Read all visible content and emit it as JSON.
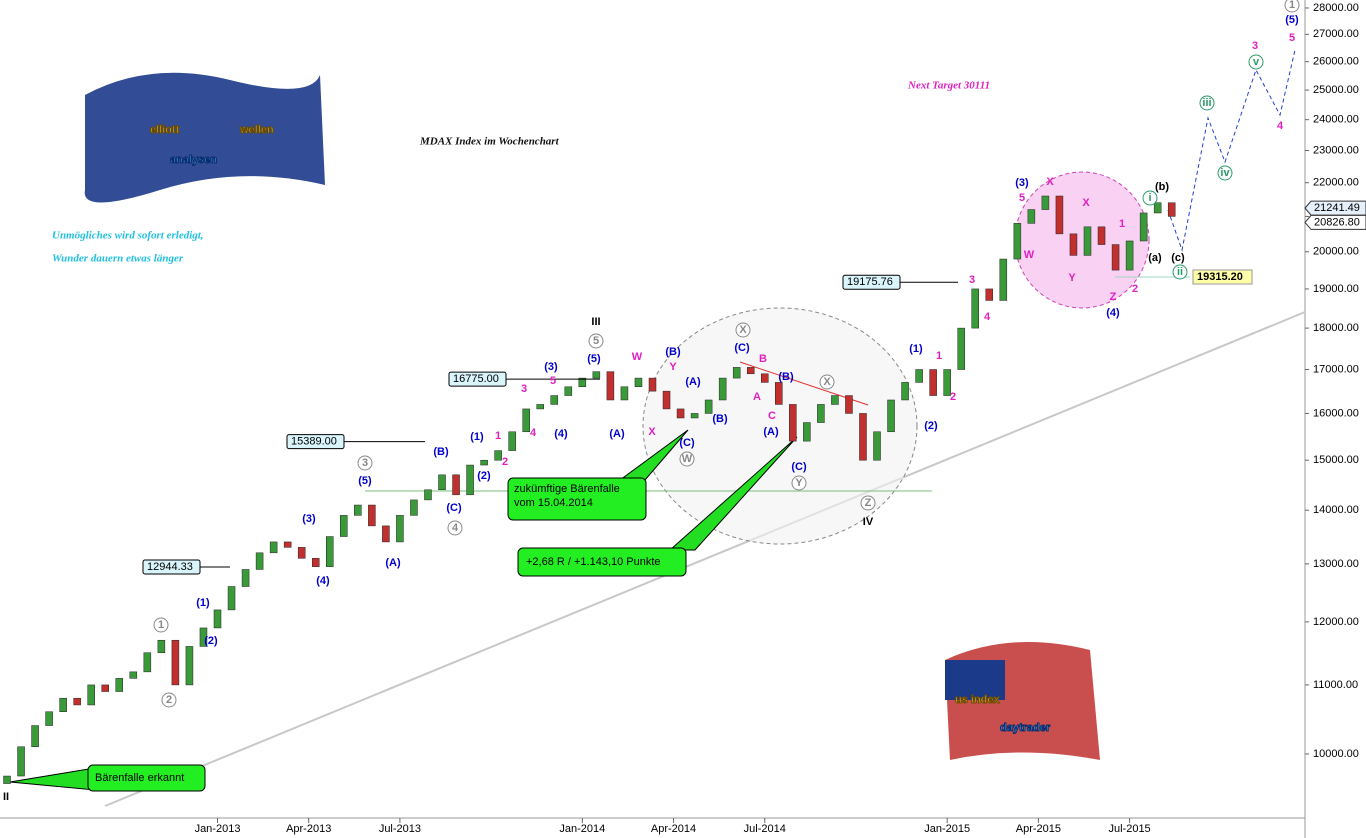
{
  "chart_data": {
    "type": "candlestick",
    "title": "MDAX Index im Wochenchart",
    "subtitle": "Next Target 30111",
    "slogan": [
      "Unmögliches wird sofort erledigt,",
      "Wunder dauern etwas länger"
    ],
    "logos": [
      [
        "elliott",
        "wellen",
        "analysen"
      ],
      [
        "us index",
        "daytrader"
      ]
    ],
    "x": [
      0,
      2,
      4,
      6,
      8,
      10,
      12,
      14,
      16,
      18,
      20,
      22,
      24,
      26,
      28,
      30,
      32,
      34,
      36,
      38,
      40,
      42,
      44,
      46,
      48,
      50,
      52,
      54,
      56,
      58,
      60,
      62,
      64,
      66,
      68,
      70,
      72,
      74,
      76,
      78,
      80,
      82,
      84,
      86,
      88,
      90,
      92,
      94,
      96,
      98,
      100,
      102,
      104,
      106,
      108,
      110,
      112,
      114,
      116,
      118,
      120,
      122,
      124,
      126,
      128,
      130,
      132,
      134,
      136,
      138,
      140,
      142,
      144,
      146,
      148,
      150,
      152,
      154,
      156,
      158,
      160,
      162,
      164,
      166
    ],
    "open": [
      9600,
      9700,
      10100,
      10400,
      10600,
      10800,
      10700,
      11000,
      10900,
      11100,
      11200,
      11500,
      11700,
      11000,
      11600,
      11900,
      12200,
      12600,
      12900,
      13200,
      13400,
      13300,
      13100,
      12950,
      13500,
      13900,
      14100,
      13700,
      13400,
      13900,
      14200,
      14400,
      14700,
      14300,
      14900,
      15000,
      15200,
      15600,
      16100,
      16200,
      16400,
      16600,
      16800,
      16950,
      16300,
      16600,
      16800,
      16500,
      16100,
      15900,
      16000,
      16300,
      16800,
      17050,
      16900,
      16700,
      16200,
      15400,
      15800,
      16200,
      16400,
      16000,
      15000,
      15600,
      16300,
      16700,
      17000,
      16400,
      17000,
      18000,
      19000,
      18700,
      19800,
      20800,
      21200,
      21600,
      20500,
      19900,
      20700,
      20200,
      19500,
      20300,
      21100,
      21400
    ],
    "close": [
      9700,
      10100,
      10400,
      10600,
      10800,
      10700,
      11000,
      10900,
      11100,
      11200,
      11500,
      11700,
      11000,
      11600,
      11900,
      12200,
      12600,
      12900,
      13200,
      13400,
      13300,
      13100,
      12950,
      13500,
      13900,
      14100,
      13700,
      13400,
      13900,
      14200,
      14400,
      14700,
      14300,
      14900,
      15000,
      15200,
      15600,
      16100,
      16200,
      16400,
      16600,
      16800,
      16950,
      16300,
      16600,
      16800,
      16500,
      16100,
      15900,
      16000,
      16300,
      16800,
      17050,
      16900,
      16700,
      16200,
      15400,
      15800,
      16200,
      16400,
      16000,
      15000,
      15600,
      16300,
      16700,
      17000,
      16400,
      17000,
      18000,
      19000,
      18700,
      19800,
      20800,
      21200,
      21600,
      20500,
      19900,
      20700,
      20200,
      19500,
      20300,
      21100,
      21400,
      21000
    ],
    "up_color": "#3a9a3a",
    "down_color": "#c0302f",
    "xlim": [
      -1,
      185
    ],
    "xticks": [
      {
        "value": 30,
        "label": "Jan-2013"
      },
      {
        "value": 43,
        "label": "Apr-2013"
      },
      {
        "value": 56,
        "label": "Jul-2013"
      },
      {
        "value": 82,
        "label": "Jan-2014"
      },
      {
        "value": 95,
        "label": "Apr-2014"
      },
      {
        "value": 108,
        "label": "Jul-2014"
      },
      {
        "value": 134,
        "label": "Jan-2015"
      },
      {
        "value": 147,
        "label": "Apr-2015"
      },
      {
        "value": 160,
        "label": "Jul-2015"
      }
    ],
    "ylim": [
      8905,
      28310
    ],
    "log_scale": true,
    "yticks": [
      {
        "value": 10000,
        "label": "10000.00"
      },
      {
        "value": 11000,
        "label": "11000.00"
      },
      {
        "value": 12000,
        "label": "12000.00"
      },
      {
        "value": 13000,
        "label": "13000.00"
      },
      {
        "value": 14000,
        "label": "14000.00"
      },
      {
        "value": 15000,
        "label": "15000.00"
      },
      {
        "value": 16000,
        "label": "16000.00"
      },
      {
        "value": 17000,
        "label": "17000.00"
      },
      {
        "value": 18000,
        "label": "18000.00"
      },
      {
        "value": 19000,
        "label": "19000.00"
      },
      {
        "value": 20000,
        "label": "20000.00"
      },
      {
        "value": 21000,
        "label": "21000.00"
      },
      {
        "value": 22000,
        "label": "22000.00"
      },
      {
        "value": 23000,
        "label": "23000.00"
      },
      {
        "value": 24000,
        "label": "24000.00"
      },
      {
        "value": 25000,
        "label": "25000.00"
      },
      {
        "value": 26000,
        "label": "26000.00"
      },
      {
        "value": 27000,
        "label": "27000.00"
      },
      {
        "value": 28000,
        "label": "28000.00"
      }
    ],
    "levels": [
      {
        "value": 12944.33,
        "label": "12944.33"
      },
      {
        "value": 15389,
        "label": "15389.00"
      },
      {
        "value": 16775,
        "label": "16775.00"
      },
      {
        "value": 19175.76,
        "label": "19175.76"
      }
    ],
    "price_markers": [
      {
        "value": 21241.49,
        "label": "21241.49"
      },
      {
        "value": 20826.8,
        "label": "20826.80"
      }
    ],
    "support": {
      "value": 19315.2,
      "label": "19315.20"
    },
    "callouts": [
      "Bärenfalle erkannt",
      "zukümftige Bärenfalle",
      "vom 15.04.2014",
      "+2,68 R / +1.143,10 Punkte"
    ],
    "annotations": [
      {
        "text": "(5)",
        "color": "#0000cc"
      },
      {
        "text": "(3)",
        "color": "#0000cc"
      },
      {
        "text": "(4)",
        "color": "#0000cc"
      },
      {
        "text": "(1)",
        "color": "#0000cc"
      },
      {
        "text": "(2)",
        "color": "#0000cc"
      },
      {
        "text": "(3)",
        "color": "#0000cc"
      },
      {
        "text": "(5)",
        "color": "#0000cc"
      },
      {
        "text": "(4)",
        "color": "#0000cc"
      },
      {
        "text": "(1)",
        "color": "#0000cc"
      },
      {
        "text": "(2)",
        "color": "#0000cc"
      },
      {
        "text": "(B)",
        "color": "#0000cc"
      },
      {
        "text": "(C)",
        "color": "#0000cc"
      },
      {
        "text": "(5)",
        "color": "#0000cc"
      },
      {
        "text": "(3)",
        "color": "#0000cc"
      },
      {
        "text": "(4)",
        "color": "#0000cc"
      },
      {
        "text": "(A)",
        "color": "#0000cc"
      },
      {
        "text": "(1)",
        "color": "#0000cc"
      },
      {
        "text": "(2)",
        "color": "#0000cc"
      },
      {
        "text": "(B)",
        "color": "#0000cc"
      },
      {
        "text": "(A)",
        "color": "#0000cc"
      },
      {
        "text": "(A)",
        "color": "#0000cc"
      },
      {
        "text": "(B)",
        "color": "#0000cc"
      },
      {
        "text": "(C)",
        "color": "#0000cc"
      },
      {
        "text": "(C)",
        "color": "#0000cc"
      },
      {
        "text": "(B)",
        "color": "#0000cc"
      },
      {
        "text": "(A)",
        "color": "#0000cc"
      },
      {
        "text": "(C)",
        "color": "#0000cc"
      },
      {
        "text": "3",
        "color": "#e020c0"
      },
      {
        "text": "5",
        "color": "#e020c0"
      },
      {
        "text": "4",
        "color": "#e020c0"
      },
      {
        "text": "5",
        "color": "#e020c0"
      },
      {
        "text": "X",
        "color": "#e020c0"
      },
      {
        "text": "X",
        "color": "#e020c0"
      },
      {
        "text": "W",
        "color": "#e020c0"
      },
      {
        "text": "Y",
        "color": "#e020c0"
      },
      {
        "text": "Z",
        "color": "#e020c0"
      },
      {
        "text": "2",
        "color": "#e020c0"
      },
      {
        "text": "1",
        "color": "#e020c0"
      },
      {
        "text": "3",
        "color": "#e020c0"
      },
      {
        "text": "4",
        "color": "#e020c0"
      },
      {
        "text": "1",
        "color": "#e020c0"
      },
      {
        "text": "2",
        "color": "#e020c0"
      },
      {
        "text": "W",
        "color": "#e020c0"
      },
      {
        "text": "Y",
        "color": "#e020c0"
      },
      {
        "text": "X",
        "color": "#e020c0"
      },
      {
        "text": "B",
        "color": "#e020c0"
      },
      {
        "text": "A",
        "color": "#e020c0"
      },
      {
        "text": "C",
        "color": "#e020c0"
      },
      {
        "text": "3",
        "color": "#e020c0"
      },
      {
        "text": "5",
        "color": "#e020c0"
      },
      {
        "text": "4",
        "color": "#e020c0"
      },
      {
        "text": "1",
        "color": "#e020c0"
      },
      {
        "text": "2",
        "color": "#e020c0"
      },
      {
        "text": "III",
        "color": "#000000"
      },
      {
        "text": "IV",
        "color": "#000000"
      },
      {
        "text": "II",
        "color": "#000000"
      },
      {
        "text": "(b)",
        "color": "#000000"
      },
      {
        "text": "(a)",
        "color": "#000000"
      },
      {
        "text": "(c)",
        "color": "#000000"
      },
      {
        "text": "1",
        "color": "#888888",
        "circled": true
      },
      {
        "text": "5",
        "color": "#888888",
        "circled": true
      },
      {
        "text": "3",
        "color": "#888888",
        "circled": true
      },
      {
        "text": "4",
        "color": "#888888",
        "circled": true
      },
      {
        "text": "1",
        "color": "#888888",
        "circled": true
      },
      {
        "text": "2",
        "color": "#888888",
        "circled": true
      },
      {
        "text": "X",
        "color": "#888888",
        "circled": true
      },
      {
        "text": "W",
        "color": "#888888",
        "circled": true
      },
      {
        "text": "X",
        "color": "#888888",
        "circled": true
      },
      {
        "text": "Y",
        "color": "#888888",
        "circled": true
      },
      {
        "text": "Z",
        "color": "#888888",
        "circled": true
      },
      {
        "text": "i",
        "color": "#2a9a6a",
        "circled": true
      },
      {
        "text": "ii",
        "color": "#2a9a6a",
        "circled": true
      },
      {
        "text": "iii",
        "color": "#2a9a6a",
        "circled": true
      },
      {
        "text": "iv",
        "color": "#2a9a6a",
        "circled": true
      },
      {
        "text": "v",
        "color": "#2a9a6a",
        "circled": true
      }
    ]
  }
}
